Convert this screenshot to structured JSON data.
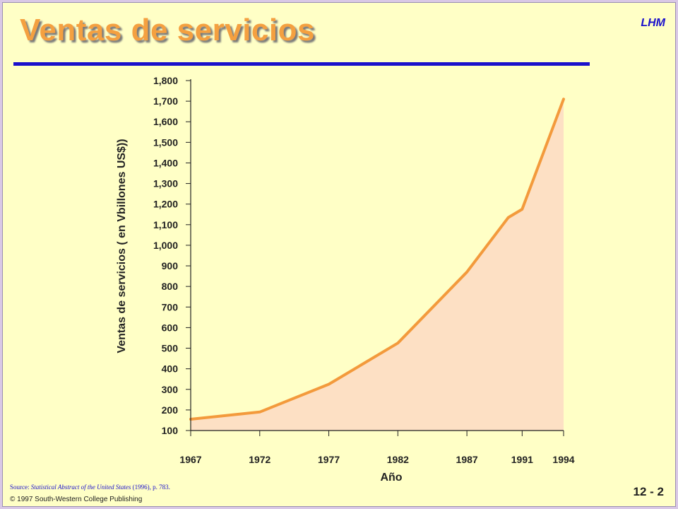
{
  "slide": {
    "title": "Ventas de servicios",
    "brand": "LHM",
    "source_prefix": "Source: ",
    "source_italic": "Statistical Abstract of the United States",
    "source_suffix": " (1996), p. 783.",
    "copyright": "©  1997 South-Western College Publishing",
    "page_number": "12 - 2"
  },
  "colors": {
    "title": "#f4a040",
    "rule": "#1a10cc",
    "line": "#f39a3c",
    "fill": "#fde0c4",
    "background": "#ffffc6"
  },
  "chart_data": {
    "type": "area",
    "xlabel": "Año",
    "ylabel": "Ventas de servicios ( en Vbillones US$))",
    "x_ticks": [
      "1967",
      "1972",
      "1977",
      "1982",
      "1987",
      "1991",
      "1994"
    ],
    "y_ticks": [
      "100",
      "200",
      "300",
      "400",
      "500",
      "600",
      "700",
      "800",
      "900",
      "1,000",
      "1,100",
      "1,200",
      "1,300",
      "1,400",
      "1,500",
      "1,600",
      "1,700",
      "1,800"
    ],
    "ylim": [
      100,
      1800
    ],
    "xlim": [
      1967,
      1994
    ],
    "x": [
      1967,
      1972,
      1977,
      1982,
      1987,
      1990,
      1991,
      1994
    ],
    "y": [
      155,
      190,
      325,
      525,
      870,
      1135,
      1175,
      1710
    ],
    "grid": false,
    "legend": "none"
  }
}
